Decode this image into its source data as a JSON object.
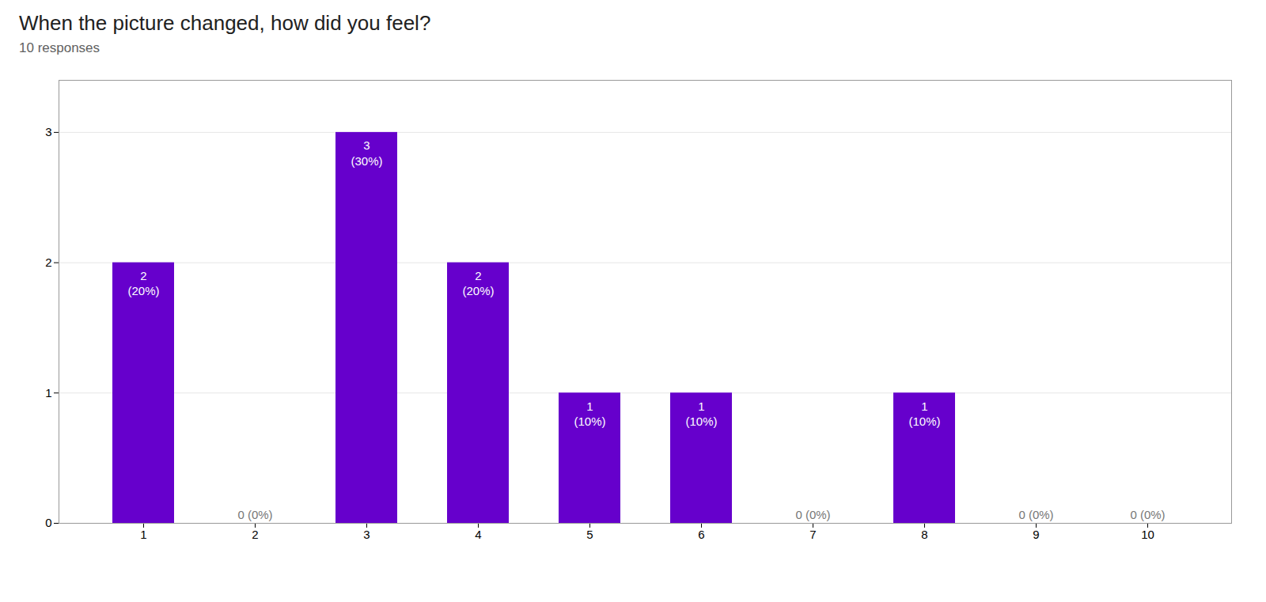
{
  "chart_data": {
    "type": "bar",
    "title": "When the picture changed, how did you feel?",
    "subtitle": "10 responses",
    "categories": [
      1,
      2,
      3,
      4,
      5,
      6,
      7,
      8,
      9,
      10
    ],
    "values": [
      2,
      0,
      3,
      2,
      1,
      1,
      0,
      1,
      0,
      0
    ],
    "value_labels": [
      "2\n(20%)",
      "0 (0%)",
      "3\n(30%)",
      "2\n(20%)",
      "1\n(10%)",
      "1\n(10%)",
      "0 (0%)",
      "1\n(10%)",
      "0 (0%)",
      "0 (0%)"
    ],
    "data_labels": true,
    "color": "#6600cc",
    "ylim": [
      0,
      3.4
    ],
    "yticks": [
      0,
      1,
      2,
      3
    ],
    "grid": true
  }
}
